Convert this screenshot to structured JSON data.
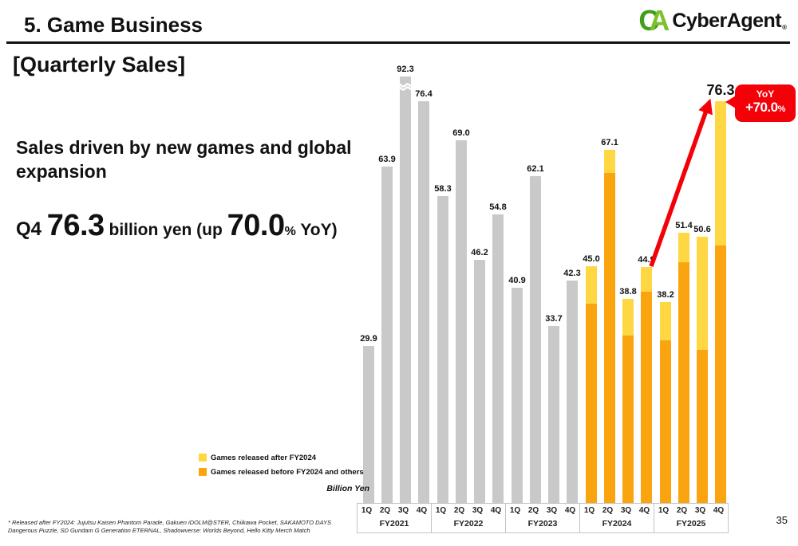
{
  "header": {
    "title": "5.  Game Business",
    "logo": {
      "mark_c": "C",
      "mark_a": "A",
      "name": "CyberAgent",
      "reg": "®"
    }
  },
  "content": {
    "section_heading": "[Quarterly Sales]",
    "headline": "Sales driven by new games and global expansion",
    "kpi": {
      "quarter": "Q4 ",
      "value": "76.3",
      "middle": " billion yen (up ",
      "pct_value": "70.0",
      "pct_sign": "%",
      "suffix": " YoY)"
    }
  },
  "chart_data": {
    "type": "bar",
    "title": "Quarterly Sales",
    "unit_label": "Billion Yen",
    "fiscal_years": [
      "FY2021",
      "FY2022",
      "FY2023",
      "FY2024",
      "FY2025"
    ],
    "quarter_labels": [
      "1Q",
      "2Q",
      "3Q",
      "4Q"
    ],
    "colors": {
      "gray": "#c9c9c9",
      "before": "#faa50f",
      "after": "#fed743",
      "red": "#f40009"
    },
    "legend": [
      {
        "swatch": "after",
        "label": "Games released after FY2024"
      },
      {
        "swatch": "before",
        "label": "Games released before FY2024 and others"
      }
    ],
    "y_axis": {
      "visible": false,
      "axis_break_on": "FY2021 3Q"
    },
    "bars": [
      {
        "fy": "FY2021",
        "quarter": "1Q",
        "total": 29.9,
        "label": "29.9"
      },
      {
        "fy": "FY2021",
        "quarter": "2Q",
        "total": 63.9,
        "label": "63.9"
      },
      {
        "fy": "FY2021",
        "quarter": "3Q",
        "total": 92.3,
        "label": "92.3",
        "axis_break": true
      },
      {
        "fy": "FY2021",
        "quarter": "4Q",
        "total": 76.4,
        "label": "76.4"
      },
      {
        "fy": "FY2022",
        "quarter": "1Q",
        "total": 58.3,
        "label": "58.3"
      },
      {
        "fy": "FY2022",
        "quarter": "2Q",
        "total": 69.0,
        "label": "69.0"
      },
      {
        "fy": "FY2022",
        "quarter": "3Q",
        "total": 46.2,
        "label": "46.2"
      },
      {
        "fy": "FY2022",
        "quarter": "4Q",
        "total": 54.8,
        "label": "54.8"
      },
      {
        "fy": "FY2023",
        "quarter": "1Q",
        "total": 40.9,
        "label": "40.9"
      },
      {
        "fy": "FY2023",
        "quarter": "2Q",
        "total": 62.1,
        "label": "62.1"
      },
      {
        "fy": "FY2023",
        "quarter": "3Q",
        "total": 33.7,
        "label": "33.7"
      },
      {
        "fy": "FY2023",
        "quarter": "4Q",
        "total": 42.3,
        "label": "42.3"
      },
      {
        "fy": "FY2024",
        "quarter": "1Q",
        "total": 45.0,
        "label": "45.0",
        "after_fy2024": 7.1,
        "before_fy2024": 37.9
      },
      {
        "fy": "FY2024",
        "quarter": "2Q",
        "total": 67.1,
        "label": "67.1",
        "after_fy2024": 4.4,
        "before_fy2024": 62.7
      },
      {
        "fy": "FY2024",
        "quarter": "3Q",
        "total": 38.8,
        "label": "38.8",
        "after_fy2024": 7.0,
        "before_fy2024": 31.8
      },
      {
        "fy": "FY2024",
        "quarter": "4Q",
        "total": 44.9,
        "label": "44.9",
        "after_fy2024": 4.7,
        "before_fy2024": 40.2
      },
      {
        "fy": "FY2025",
        "quarter": "1Q",
        "total": 38.2,
        "label": "38.2",
        "after_fy2024": 7.3,
        "before_fy2024": 30.9
      },
      {
        "fy": "FY2025",
        "quarter": "2Q",
        "total": 51.4,
        "label": "51.4",
        "after_fy2024": 5.6,
        "before_fy2024": 45.8
      },
      {
        "fy": "FY2025",
        "quarter": "3Q",
        "total": 50.6,
        "label": "50.6",
        "after_fy2024": 21.5,
        "before_fy2024": 29.1
      },
      {
        "fy": "FY2025",
        "quarter": "4Q",
        "total": 76.3,
        "label": "76.3",
        "after_fy2024": 27.3,
        "before_fy2024": 49.0,
        "emphasis": true
      }
    ],
    "annotation": {
      "yoy_label": "YoY",
      "yoy_value": "+70.0",
      "pct_sign": "%"
    }
  },
  "footnote": "*  Released after FY2024: Jujutsu Kaisen Phantom Parade, Gakuen iDOLM@STER, Chiikawa Pocket, SAKAMOTO DAYS Dangerous Puzzle, SD Gundam G Generation ETERNAL, Shadowverse: Worlds Beyond, Hello Kitty Merch Match",
  "page_number": "35"
}
